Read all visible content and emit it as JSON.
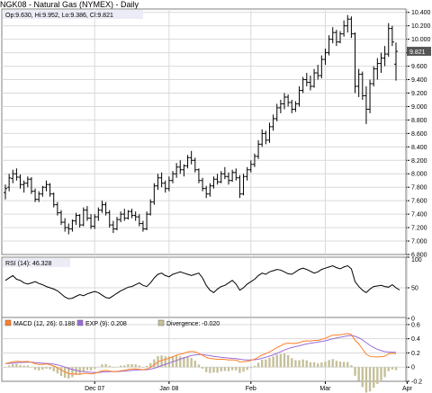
{
  "title": "NGK08 - Natural Gas (NYMEX) - Daily",
  "colors": {
    "panel_border": "#808080",
    "legend_bg": "#ececf6",
    "grid": "#d9d9d9",
    "bars": "#000000",
    "rsi_line": "#000000",
    "macd_line": "#ff7f27",
    "exp_line": "#9a6bd8",
    "divergence": "#c6c09a",
    "last_label_bg": "#555555",
    "last_label_text": "#ffffff"
  },
  "chart_data": [
    {
      "type": "ohlc",
      "name": "price",
      "legend": "Op:9.630, Hi:9.952, Lo:9.386, Cl:9.821",
      "ylim": [
        6.8,
        10.45
      ],
      "yticks": [
        6.8,
        7.0,
        7.2,
        7.4,
        7.6,
        7.8,
        8.0,
        8.2,
        8.4,
        8.6,
        8.8,
        9.0,
        9.2,
        9.4,
        9.6,
        9.8,
        10.0,
        10.2,
        10.4
      ],
      "ytick_labels": [
        "6.800",
        "7.000",
        "7.200",
        "7.400",
        "7.600",
        "7.800",
        "8.000",
        "8.200",
        "8.400",
        "8.600",
        "8.800",
        "9.000",
        "9.200",
        "9.400",
        "9.600",
        "9.800",
        "10.000",
        "10.200",
        "10.400"
      ],
      "last_value_label": "9.821",
      "last_value": 9.821,
      "x_labels": [
        {
          "label": "Dec 07",
          "index": 24
        },
        {
          "label": "Jan 08",
          "index": 44
        },
        {
          "label": "Feb",
          "index": 66
        },
        {
          "label": "Mar",
          "index": 86
        },
        {
          "label": "Apr",
          "index": 108
        }
      ],
      "bars": [
        {
          "o": 7.72,
          "h": 7.84,
          "l": 7.62,
          "c": 7.78
        },
        {
          "o": 7.8,
          "h": 8.0,
          "l": 7.74,
          "c": 7.94
        },
        {
          "o": 7.93,
          "h": 8.06,
          "l": 7.86,
          "c": 8.0
        },
        {
          "o": 8.0,
          "h": 8.08,
          "l": 7.9,
          "c": 7.95
        },
        {
          "o": 7.95,
          "h": 7.99,
          "l": 7.78,
          "c": 7.84
        },
        {
          "o": 7.84,
          "h": 7.9,
          "l": 7.72,
          "c": 7.86
        },
        {
          "o": 7.86,
          "h": 7.96,
          "l": 7.8,
          "c": 7.92
        },
        {
          "o": 7.92,
          "h": 7.95,
          "l": 7.7,
          "c": 7.74
        },
        {
          "o": 7.74,
          "h": 7.78,
          "l": 7.58,
          "c": 7.62
        },
        {
          "o": 7.62,
          "h": 7.74,
          "l": 7.58,
          "c": 7.7
        },
        {
          "o": 7.7,
          "h": 7.82,
          "l": 7.66,
          "c": 7.8
        },
        {
          "o": 7.8,
          "h": 7.9,
          "l": 7.74,
          "c": 7.84
        },
        {
          "o": 7.84,
          "h": 7.86,
          "l": 7.66,
          "c": 7.7
        },
        {
          "o": 7.7,
          "h": 7.72,
          "l": 7.5,
          "c": 7.54
        },
        {
          "o": 7.54,
          "h": 7.58,
          "l": 7.38,
          "c": 7.42
        },
        {
          "o": 7.42,
          "h": 7.46,
          "l": 7.24,
          "c": 7.28
        },
        {
          "o": 7.28,
          "h": 7.34,
          "l": 7.14,
          "c": 7.2
        },
        {
          "o": 7.2,
          "h": 7.26,
          "l": 7.1,
          "c": 7.18
        },
        {
          "o": 7.18,
          "h": 7.32,
          "l": 7.14,
          "c": 7.3
        },
        {
          "o": 7.3,
          "h": 7.42,
          "l": 7.24,
          "c": 7.38
        },
        {
          "o": 7.38,
          "h": 7.4,
          "l": 7.2,
          "c": 7.24
        },
        {
          "o": 7.24,
          "h": 7.5,
          "l": 7.22,
          "c": 7.46
        },
        {
          "o": 7.46,
          "h": 7.52,
          "l": 7.3,
          "c": 7.34
        },
        {
          "o": 7.34,
          "h": 7.4,
          "l": 7.18,
          "c": 7.22
        },
        {
          "o": 7.22,
          "h": 7.4,
          "l": 7.18,
          "c": 7.36
        },
        {
          "o": 7.36,
          "h": 7.5,
          "l": 7.3,
          "c": 7.46
        },
        {
          "o": 7.46,
          "h": 7.6,
          "l": 7.42,
          "c": 7.54
        },
        {
          "o": 7.54,
          "h": 7.58,
          "l": 7.38,
          "c": 7.42
        },
        {
          "o": 7.42,
          "h": 7.46,
          "l": 7.2,
          "c": 7.24
        },
        {
          "o": 7.24,
          "h": 7.3,
          "l": 7.12,
          "c": 7.18
        },
        {
          "o": 7.18,
          "h": 7.36,
          "l": 7.16,
          "c": 7.32
        },
        {
          "o": 7.32,
          "h": 7.44,
          "l": 7.28,
          "c": 7.4
        },
        {
          "o": 7.4,
          "h": 7.48,
          "l": 7.3,
          "c": 7.34
        },
        {
          "o": 7.34,
          "h": 7.46,
          "l": 7.32,
          "c": 7.44
        },
        {
          "o": 7.44,
          "h": 7.48,
          "l": 7.34,
          "c": 7.38
        },
        {
          "o": 7.38,
          "h": 7.44,
          "l": 7.3,
          "c": 7.36
        },
        {
          "o": 7.36,
          "h": 7.4,
          "l": 7.22,
          "c": 7.26
        },
        {
          "o": 7.26,
          "h": 7.3,
          "l": 7.14,
          "c": 7.18
        },
        {
          "o": 7.18,
          "h": 7.44,
          "l": 7.16,
          "c": 7.4
        },
        {
          "o": 7.4,
          "h": 7.62,
          "l": 7.38,
          "c": 7.58
        },
        {
          "o": 7.58,
          "h": 7.86,
          "l": 7.54,
          "c": 7.82
        },
        {
          "o": 7.82,
          "h": 8.0,
          "l": 7.76,
          "c": 7.94
        },
        {
          "o": 7.94,
          "h": 8.02,
          "l": 7.8,
          "c": 7.86
        },
        {
          "o": 7.86,
          "h": 7.9,
          "l": 7.72,
          "c": 7.78
        },
        {
          "o": 7.78,
          "h": 7.96,
          "l": 7.74,
          "c": 7.9
        },
        {
          "o": 7.9,
          "h": 8.04,
          "l": 7.86,
          "c": 8.0
        },
        {
          "o": 8.0,
          "h": 8.16,
          "l": 7.94,
          "c": 8.1
        },
        {
          "o": 8.1,
          "h": 8.2,
          "l": 8.0,
          "c": 8.06
        },
        {
          "o": 8.06,
          "h": 8.14,
          "l": 7.96,
          "c": 8.12
        },
        {
          "o": 8.12,
          "h": 8.28,
          "l": 8.08,
          "c": 8.24
        },
        {
          "o": 8.24,
          "h": 8.34,
          "l": 8.14,
          "c": 8.2
        },
        {
          "o": 8.2,
          "h": 8.24,
          "l": 8.02,
          "c": 8.06
        },
        {
          "o": 8.06,
          "h": 8.08,
          "l": 7.86,
          "c": 7.9
        },
        {
          "o": 7.9,
          "h": 7.94,
          "l": 7.74,
          "c": 7.78
        },
        {
          "o": 7.78,
          "h": 7.82,
          "l": 7.64,
          "c": 7.7
        },
        {
          "o": 7.7,
          "h": 7.86,
          "l": 7.66,
          "c": 7.82
        },
        {
          "o": 7.82,
          "h": 7.96,
          "l": 7.78,
          "c": 7.92
        },
        {
          "o": 7.92,
          "h": 8.0,
          "l": 7.84,
          "c": 7.88
        },
        {
          "o": 7.88,
          "h": 8.04,
          "l": 7.86,
          "c": 8.0
        },
        {
          "o": 8.0,
          "h": 8.1,
          "l": 7.92,
          "c": 7.96
        },
        {
          "o": 7.96,
          "h": 8.02,
          "l": 7.84,
          "c": 7.9
        },
        {
          "o": 7.9,
          "h": 8.06,
          "l": 7.88,
          "c": 8.02
        },
        {
          "o": 8.02,
          "h": 8.08,
          "l": 7.9,
          "c": 7.94
        },
        {
          "o": 7.94,
          "h": 7.98,
          "l": 7.64,
          "c": 7.7
        },
        {
          "o": 7.7,
          "h": 8.0,
          "l": 7.68,
          "c": 7.96
        },
        {
          "o": 7.96,
          "h": 8.1,
          "l": 7.9,
          "c": 8.06
        },
        {
          "o": 8.06,
          "h": 8.2,
          "l": 8.02,
          "c": 8.14
        },
        {
          "o": 8.14,
          "h": 8.3,
          "l": 8.1,
          "c": 8.26
        },
        {
          "o": 8.26,
          "h": 8.5,
          "l": 8.22,
          "c": 8.44
        },
        {
          "o": 8.44,
          "h": 8.66,
          "l": 8.4,
          "c": 8.6
        },
        {
          "o": 8.6,
          "h": 8.64,
          "l": 8.44,
          "c": 8.5
        },
        {
          "o": 8.5,
          "h": 8.76,
          "l": 8.46,
          "c": 8.7
        },
        {
          "o": 8.7,
          "h": 8.88,
          "l": 8.64,
          "c": 8.82
        },
        {
          "o": 8.82,
          "h": 9.04,
          "l": 8.78,
          "c": 8.98
        },
        {
          "o": 8.98,
          "h": 9.1,
          "l": 8.9,
          "c": 9.04
        },
        {
          "o": 9.04,
          "h": 9.2,
          "l": 8.96,
          "c": 9.14
        },
        {
          "o": 9.14,
          "h": 9.18,
          "l": 9.0,
          "c": 9.06
        },
        {
          "o": 9.06,
          "h": 9.1,
          "l": 8.9,
          "c": 8.96
        },
        {
          "o": 8.96,
          "h": 9.08,
          "l": 8.92,
          "c": 9.04
        },
        {
          "o": 9.04,
          "h": 9.3,
          "l": 9.0,
          "c": 9.24
        },
        {
          "o": 9.24,
          "h": 9.44,
          "l": 9.2,
          "c": 9.4
        },
        {
          "o": 9.4,
          "h": 9.5,
          "l": 9.3,
          "c": 9.36
        },
        {
          "o": 9.36,
          "h": 9.46,
          "l": 9.24,
          "c": 9.3
        },
        {
          "o": 9.3,
          "h": 9.56,
          "l": 9.28,
          "c": 9.5
        },
        {
          "o": 9.5,
          "h": 9.62,
          "l": 9.4,
          "c": 9.46
        },
        {
          "o": 9.46,
          "h": 9.76,
          "l": 9.42,
          "c": 9.7
        },
        {
          "o": 9.7,
          "h": 9.86,
          "l": 9.62,
          "c": 9.8
        },
        {
          "o": 9.8,
          "h": 10.06,
          "l": 9.76,
          "c": 10.0
        },
        {
          "o": 10.0,
          "h": 10.18,
          "l": 9.94,
          "c": 10.1
        },
        {
          "o": 10.1,
          "h": 10.14,
          "l": 9.9,
          "c": 9.96
        },
        {
          "o": 9.96,
          "h": 10.12,
          "l": 9.94,
          "c": 10.08
        },
        {
          "o": 10.08,
          "h": 10.28,
          "l": 10.04,
          "c": 10.2
        },
        {
          "o": 10.2,
          "h": 10.36,
          "l": 10.1,
          "c": 10.3
        },
        {
          "o": 10.3,
          "h": 10.34,
          "l": 10.02,
          "c": 10.08
        },
        {
          "o": 10.08,
          "h": 10.1,
          "l": 9.2,
          "c": 9.3
        },
        {
          "o": 9.3,
          "h": 9.56,
          "l": 9.14,
          "c": 9.48
        },
        {
          "o": 9.48,
          "h": 9.52,
          "l": 9.1,
          "c": 9.16
        },
        {
          "o": 9.16,
          "h": 9.3,
          "l": 8.74,
          "c": 8.96
        },
        {
          "o": 8.96,
          "h": 9.4,
          "l": 8.9,
          "c": 9.34
        },
        {
          "o": 9.34,
          "h": 9.6,
          "l": 9.3,
          "c": 9.56
        },
        {
          "o": 9.56,
          "h": 9.72,
          "l": 9.4,
          "c": 9.64
        },
        {
          "o": 9.64,
          "h": 9.8,
          "l": 9.5,
          "c": 9.72
        },
        {
          "o": 9.72,
          "h": 9.9,
          "l": 9.6,
          "c": 9.78
        },
        {
          "o": 9.78,
          "h": 10.24,
          "l": 9.74,
          "c": 10.16
        },
        {
          "o": 10.16,
          "h": 10.2,
          "l": 9.9,
          "c": 9.96
        },
        {
          "o": 9.63,
          "h": 9.952,
          "l": 9.386,
          "c": 9.821
        }
      ]
    },
    {
      "type": "line",
      "name": "rsi",
      "legend": "RSI (14): 46.328",
      "ylim": [
        0,
        100
      ],
      "yticks": [
        0,
        50,
        100
      ],
      "ytick_labels": [
        "0",
        "50",
        "100"
      ],
      "values": [
        62,
        66,
        70,
        64,
        62,
        58,
        56,
        58,
        60,
        57,
        55,
        52,
        50,
        48,
        45,
        40,
        35,
        32,
        33,
        36,
        39,
        37,
        40,
        42,
        44,
        42,
        38,
        34,
        33,
        37,
        41,
        45,
        48,
        51,
        52,
        55,
        58,
        54,
        52,
        58,
        66,
        72,
        74,
        70,
        68,
        72,
        74,
        76,
        74,
        72,
        70,
        72,
        74,
        66,
        54,
        46,
        42,
        48,
        52,
        54,
        58,
        62,
        56,
        46,
        50,
        56,
        60,
        64,
        70,
        74,
        72,
        76,
        78,
        80,
        79,
        76,
        73,
        72,
        76,
        80,
        82,
        80,
        77,
        74,
        76,
        80,
        82,
        84,
        86,
        83,
        81,
        84,
        86,
        81,
        60,
        52,
        46,
        42,
        48,
        52,
        53,
        54,
        52,
        51,
        55,
        50,
        46.328
      ]
    },
    {
      "type": "line+bar",
      "name": "macd",
      "legends": [
        "MACD (12, 26): 0.188",
        "EXP (9): 0.208",
        "Divergence: -0.020"
      ],
      "series_names": [
        "MACD (12, 26)",
        "EXP (9)",
        "Divergence"
      ],
      "ylim": [
        -0.2,
        0.7
      ],
      "yticks": [
        -0.2,
        0,
        0.2,
        0.4,
        0.6
      ],
      "ytick_labels": [
        "-0.2",
        "0",
        "0.2",
        "0.4",
        "0.6"
      ],
      "macd_start": 0.05,
      "macd_end": 0.188,
      "exp_start": 0.05,
      "exp_end": 0.208,
      "divergence_end": -0.02
    }
  ]
}
